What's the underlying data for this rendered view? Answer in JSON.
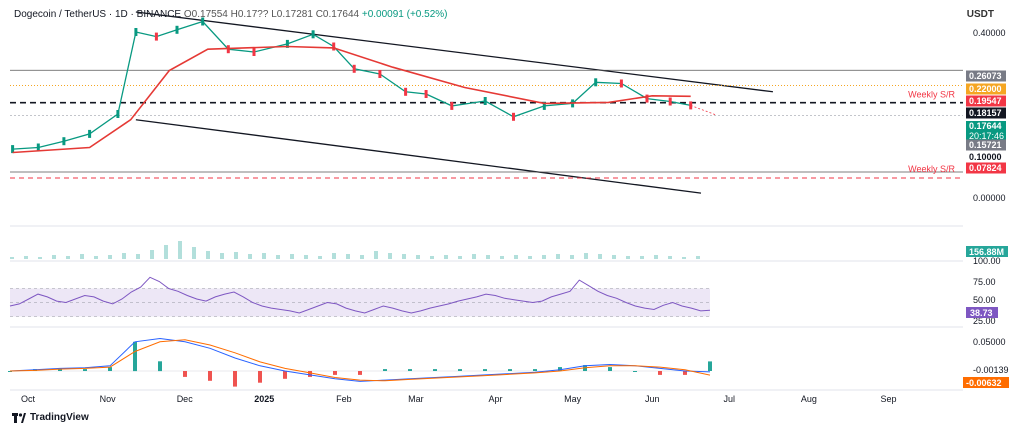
{
  "header": {
    "symbol": "Dogecoin / TetherUS · 1D · BINANCE",
    "open": "O0.17554",
    "high": "H0.17??",
    "low": "L0.17281",
    "close": "C0.17644",
    "change": "+0.00091 (+0.52%)"
  },
  "unit": "USDT",
  "brand": "TradingView",
  "colors": {
    "up": "#089981",
    "down": "#f23645",
    "ema": "#e53935",
    "channel": "#131722",
    "rsi": "#7e57c2",
    "macd": "#2962ff",
    "signal": "#ff6d00",
    "volume": "#b2dfdb"
  },
  "chart_data": [
    {
      "type": "line",
      "title": "Dogecoin / TetherUS · 1D · BINANCE",
      "yunit": "USDT",
      "yscale": "log",
      "y_ticks": [
        "0.40000",
        "0.00000"
      ],
      "x_ticks": [
        "Oct",
        "Nov",
        "Dec",
        "2025",
        "Feb",
        "Mar",
        "Apr",
        "May",
        "Jun",
        "Jul",
        "Aug",
        "Sep"
      ],
      "series": [
        {
          "values": [
            {
              "date": "2024-09-25",
              "price": 0.108
            },
            {
              "date": "2024-10-05",
              "price": 0.11
            },
            {
              "date": "2024-10-15",
              "price": 0.118
            },
            {
              "date": "2024-10-25",
              "price": 0.128
            },
            {
              "date": "2024-11-05",
              "price": 0.16
            },
            {
              "date": "2024-11-12",
              "price": 0.4
            },
            {
              "date": "2024-11-20",
              "price": 0.38
            },
            {
              "date": "2024-11-28",
              "price": 0.41
            },
            {
              "date": "2024-12-08",
              "price": 0.45
            },
            {
              "date": "2024-12-18",
              "price": 0.33
            },
            {
              "date": "2024-12-28",
              "price": 0.32
            },
            {
              "date": "2025-01-10",
              "price": 0.35
            },
            {
              "date": "2025-01-20",
              "price": 0.39
            },
            {
              "date": "2025-01-28",
              "price": 0.34
            },
            {
              "date": "2025-02-05",
              "price": 0.265
            },
            {
              "date": "2025-02-15",
              "price": 0.25
            },
            {
              "date": "2025-02-25",
              "price": 0.205
            },
            {
              "date": "2025-03-05",
              "price": 0.2
            },
            {
              "date": "2025-03-15",
              "price": 0.175
            },
            {
              "date": "2025-03-28",
              "price": 0.185
            },
            {
              "date": "2025-04-08",
              "price": 0.155
            },
            {
              "date": "2025-04-20",
              "price": 0.175
            },
            {
              "date": "2025-05-01",
              "price": 0.18
            },
            {
              "date": "2025-05-10",
              "price": 0.228
            },
            {
              "date": "2025-05-20",
              "price": 0.225
            },
            {
              "date": "2025-05-30",
              "price": 0.19
            },
            {
              "date": "2025-06-08",
              "price": 0.184
            },
            {
              "date": "2025-06-16",
              "price": 0.176
            }
          ]
        },
        {
          "name": "EMA",
          "values": [
            {
              "date": "2024-09-25",
              "price": 0.104
            },
            {
              "date": "2024-10-25",
              "price": 0.11
            },
            {
              "date": "2024-11-10",
              "price": 0.15
            },
            {
              "date": "2024-11-25",
              "price": 0.26
            },
            {
              "date": "2024-12-10",
              "price": 0.33
            },
            {
              "date": "2025-01-10",
              "price": 0.34
            },
            {
              "date": "2025-01-28",
              "price": 0.335
            },
            {
              "date": "2025-02-20",
              "price": 0.27
            },
            {
              "date": "2025-03-20",
              "price": 0.215
            },
            {
              "date": "2025-04-20",
              "price": 0.18
            },
            {
              "date": "2025-05-15",
              "price": 0.182
            },
            {
              "date": "2025-06-01",
              "price": 0.196
            },
            {
              "date": "2025-06-16",
              "price": 0.195
            }
          ]
        }
      ],
      "levels": [
        {
          "label": "0.26073",
          "kind": "grey"
        },
        {
          "label": "0.22000",
          "kind": "orange"
        },
        {
          "label": "0.19547",
          "kind": "red"
        },
        {
          "label": "0.18157",
          "kind": "black",
          "note": "Weekly S/R"
        },
        {
          "label": "0.17644",
          "kind": "green",
          "sub": "20:17:46"
        },
        {
          "label": "0.15721",
          "kind": "grey"
        },
        {
          "label": "0.10000",
          "kind": "plain"
        },
        {
          "label": "0.07824",
          "kind": "red",
          "note": "Weekly S/R"
        }
      ],
      "annotations": [
        "Weekly S/R",
        "Weekly S/R"
      ]
    },
    {
      "type": "bar",
      "title": "Volume",
      "last_value_label": "156.88M"
    },
    {
      "type": "line",
      "title": "RSI",
      "y_ticks": [
        "100.00",
        "75.00",
        "50.00",
        "25.00"
      ],
      "last_value_label": "38.73",
      "values": [
        45,
        48,
        55,
        62,
        58,
        52,
        50,
        55,
        60,
        58,
        52,
        48,
        55,
        65,
        72,
        86,
        80,
        70,
        66,
        60,
        55,
        52,
        58,
        62,
        65,
        58,
        50,
        45,
        42,
        40,
        38,
        35,
        40,
        45,
        50,
        48,
        42,
        38,
        35,
        40,
        45,
        42,
        38,
        35,
        38,
        42,
        45,
        48,
        52,
        55,
        58,
        62,
        60,
        56,
        54,
        52,
        50,
        52,
        58,
        62,
        66,
        82,
        74,
        66,
        60,
        56,
        50,
        45,
        42,
        40,
        46,
        50,
        45,
        42,
        38,
        39
      ]
    },
    {
      "type": "line",
      "title": "MACD",
      "y_ticks": [
        "0.05000"
      ],
      "labels": [
        "-0.00139",
        "-0.00632"
      ],
      "macd": [
        0.0,
        0.002,
        0.004,
        0.005,
        0.008,
        0.045,
        0.05,
        0.045,
        0.035,
        0.02,
        0.008,
        0.0,
        -0.006,
        -0.012,
        -0.016,
        -0.014,
        -0.012,
        -0.01,
        -0.008,
        -0.006,
        -0.004,
        -0.002,
        0.002,
        0.008,
        0.01,
        0.008,
        0.004,
        0.0,
        -0.0014
      ],
      "signal": [
        0.0,
        0.001,
        0.003,
        0.004,
        0.006,
        0.03,
        0.045,
        0.048,
        0.04,
        0.028,
        0.014,
        0.004,
        -0.003,
        -0.01,
        -0.014,
        -0.015,
        -0.013,
        -0.011,
        -0.009,
        -0.007,
        -0.005,
        -0.003,
        0.0,
        0.005,
        0.008,
        0.008,
        0.006,
        0.002,
        -0.0063
      ]
    }
  ]
}
